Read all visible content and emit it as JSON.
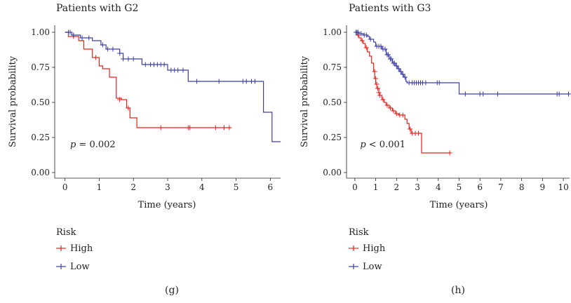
{
  "chart_data": [
    {
      "type": "line",
      "panel_label": "(g)",
      "title": "Patients with G2",
      "xlabel": "Time (years)",
      "ylabel": "Survival probability",
      "xlim": [
        -0.3,
        6.3
      ],
      "ylim": [
        -0.04,
        1.05
      ],
      "xticks": [
        0,
        1,
        2,
        3,
        4,
        5,
        6
      ],
      "xtick_labels": [
        "0",
        "1",
        "2",
        "3",
        "4",
        "5",
        "6"
      ],
      "yticks": [
        0,
        0.25,
        0.5,
        0.75,
        1
      ],
      "ytick_labels": [
        "0.00",
        "0.25",
        "0.50",
        "0.75",
        "1.00"
      ],
      "annotation": {
        "p_label": "p",
        "p_text": " = 0.002",
        "at": [
          0.15,
          0.2
        ]
      },
      "legend": {
        "title": "Risk",
        "placement": "bottom-left"
      },
      "series": [
        {
          "name": "High",
          "color": "#e0241f",
          "steps": [
            [
              0,
              1.0
            ],
            [
              0.1,
              0.97
            ],
            [
              0.4,
              0.94
            ],
            [
              0.55,
              0.88
            ],
            [
              0.8,
              0.82
            ],
            [
              1.0,
              0.76
            ],
            [
              1.1,
              0.74
            ],
            [
              1.3,
              0.68
            ],
            [
              1.5,
              0.53
            ],
            [
              1.65,
              0.52
            ],
            [
              1.8,
              0.46
            ],
            [
              1.9,
              0.39
            ],
            [
              2.1,
              0.32
            ],
            [
              4.85,
              0.32
            ]
          ],
          "censors": [
            [
              0.25,
              0.97
            ],
            [
              0.9,
              0.82
            ],
            [
              1.6,
              0.52
            ],
            [
              1.85,
              0.46
            ],
            [
              2.8,
              0.32
            ],
            [
              3.6,
              0.32
            ],
            [
              3.65,
              0.32
            ],
            [
              4.4,
              0.32
            ],
            [
              4.65,
              0.32
            ],
            [
              4.8,
              0.32
            ]
          ]
        },
        {
          "name": "Low",
          "color": "#3d3fa5",
          "steps": [
            [
              0,
              1.0
            ],
            [
              0.2,
              0.98
            ],
            [
              0.45,
              0.96
            ],
            [
              0.8,
              0.94
            ],
            [
              1.05,
              0.91
            ],
            [
              1.2,
              0.88
            ],
            [
              1.6,
              0.85
            ],
            [
              1.7,
              0.81
            ],
            [
              2.25,
              0.77
            ],
            [
              3.0,
              0.73
            ],
            [
              3.6,
              0.65
            ],
            [
              5.8,
              0.43
            ],
            [
              6.05,
              0.22
            ],
            [
              6.3,
              0.22
            ]
          ],
          "censors": [
            [
              0.1,
              1.0
            ],
            [
              0.15,
              1.0
            ],
            [
              0.25,
              0.98
            ],
            [
              0.5,
              0.96
            ],
            [
              0.7,
              0.96
            ],
            [
              1.1,
              0.91
            ],
            [
              1.25,
              0.88
            ],
            [
              1.4,
              0.88
            ],
            [
              1.6,
              0.85
            ],
            [
              1.7,
              0.81
            ],
            [
              1.85,
              0.81
            ],
            [
              2.0,
              0.81
            ],
            [
              2.35,
              0.77
            ],
            [
              2.5,
              0.77
            ],
            [
              2.6,
              0.77
            ],
            [
              2.7,
              0.77
            ],
            [
              2.8,
              0.77
            ],
            [
              2.9,
              0.77
            ],
            [
              3.1,
              0.73
            ],
            [
              3.2,
              0.73
            ],
            [
              3.3,
              0.73
            ],
            [
              3.45,
              0.73
            ],
            [
              3.85,
              0.65
            ],
            [
              4.5,
              0.65
            ],
            [
              5.2,
              0.65
            ],
            [
              5.3,
              0.65
            ],
            [
              5.45,
              0.65
            ],
            [
              5.55,
              0.65
            ]
          ]
        }
      ]
    },
    {
      "type": "line",
      "panel_label": "(h)",
      "title": "Patients with G3",
      "xlabel": "Time (years)",
      "ylabel": "Survival probability",
      "xlim": [
        -0.4,
        10.3
      ],
      "ylim": [
        -0.04,
        1.05
      ],
      "xticks": [
        0,
        1,
        2,
        3,
        4,
        5,
        6,
        7,
        8,
        9,
        10
      ],
      "xtick_labels": [
        "0",
        "1",
        "2",
        "3",
        "4",
        "5",
        "6",
        "7",
        "8",
        "9",
        "10"
      ],
      "yticks": [
        0,
        0.25,
        0.5,
        0.75,
        1
      ],
      "ytick_labels": [
        "0.00",
        "0.25",
        "0.50",
        "0.75",
        "1.00"
      ],
      "annotation": {
        "p_label": "p",
        "p_text": " < 0.001",
        "at": [
          0.25,
          0.2
        ]
      },
      "legend": {
        "title": "Risk",
        "placement": "bottom-left"
      },
      "series": [
        {
          "name": "High",
          "color": "#e0241f",
          "steps": [
            [
              0,
              1.0
            ],
            [
              0.1,
              0.98
            ],
            [
              0.2,
              0.96
            ],
            [
              0.3,
              0.94
            ],
            [
              0.4,
              0.92
            ],
            [
              0.5,
              0.89
            ],
            [
              0.6,
              0.86
            ],
            [
              0.7,
              0.83
            ],
            [
              0.8,
              0.78
            ],
            [
              0.9,
              0.72
            ],
            [
              0.95,
              0.67
            ],
            [
              1.0,
              0.63
            ],
            [
              1.05,
              0.6
            ],
            [
              1.15,
              0.57
            ],
            [
              1.2,
              0.55
            ],
            [
              1.3,
              0.52
            ],
            [
              1.4,
              0.5
            ],
            [
              1.5,
              0.48
            ],
            [
              1.65,
              0.46
            ],
            [
              1.8,
              0.44
            ],
            [
              1.95,
              0.42
            ],
            [
              2.1,
              0.41
            ],
            [
              2.4,
              0.38
            ],
            [
              2.5,
              0.35
            ],
            [
              2.6,
              0.31
            ],
            [
              2.7,
              0.28
            ],
            [
              3.2,
              0.14
            ],
            [
              4.6,
              0.14
            ]
          ],
          "censors": [
            [
              0.15,
              0.98
            ],
            [
              0.35,
              0.94
            ],
            [
              0.55,
              0.89
            ],
            [
              0.95,
              0.72
            ],
            [
              1.0,
              0.67
            ],
            [
              1.05,
              0.63
            ],
            [
              1.1,
              0.6
            ],
            [
              1.15,
              0.57
            ],
            [
              1.2,
              0.55
            ],
            [
              1.35,
              0.52
            ],
            [
              1.55,
              0.48
            ],
            [
              1.7,
              0.46
            ],
            [
              1.85,
              0.44
            ],
            [
              2.0,
              0.42
            ],
            [
              2.15,
              0.41
            ],
            [
              2.3,
              0.41
            ],
            [
              2.65,
              0.31
            ],
            [
              2.75,
              0.28
            ],
            [
              2.9,
              0.28
            ],
            [
              3.05,
              0.28
            ],
            [
              4.55,
              0.14
            ]
          ]
        },
        {
          "name": "Low",
          "color": "#3d3fa5",
          "steps": [
            [
              0,
              1.0
            ],
            [
              0.2,
              0.99
            ],
            [
              0.4,
              0.98
            ],
            [
              0.6,
              0.97
            ],
            [
              0.7,
              0.95
            ],
            [
              0.9,
              0.93
            ],
            [
              1.0,
              0.9
            ],
            [
              1.3,
              0.88
            ],
            [
              1.5,
              0.84
            ],
            [
              1.65,
              0.81
            ],
            [
              1.8,
              0.78
            ],
            [
              1.95,
              0.76
            ],
            [
              2.05,
              0.74
            ],
            [
              2.15,
              0.72
            ],
            [
              2.25,
              0.7
            ],
            [
              2.35,
              0.68
            ],
            [
              2.45,
              0.65
            ],
            [
              2.5,
              0.64
            ],
            [
              5.0,
              0.56
            ],
            [
              10.3,
              0.56
            ]
          ],
          "censors": [
            [
              0.05,
              1.0
            ],
            [
              0.1,
              1.0
            ],
            [
              0.15,
              1.0
            ],
            [
              0.3,
              0.99
            ],
            [
              0.45,
              0.98
            ],
            [
              0.55,
              0.98
            ],
            [
              0.75,
              0.95
            ],
            [
              1.05,
              0.9
            ],
            [
              1.15,
              0.9
            ],
            [
              1.25,
              0.9
            ],
            [
              1.35,
              0.88
            ],
            [
              1.45,
              0.88
            ],
            [
              1.55,
              0.84
            ],
            [
              1.6,
              0.84
            ],
            [
              1.7,
              0.81
            ],
            [
              1.75,
              0.81
            ],
            [
              1.85,
              0.78
            ],
            [
              1.9,
              0.78
            ],
            [
              2.0,
              0.76
            ],
            [
              2.1,
              0.74
            ],
            [
              2.2,
              0.72
            ],
            [
              2.3,
              0.7
            ],
            [
              2.4,
              0.68
            ],
            [
              2.6,
              0.64
            ],
            [
              2.75,
              0.64
            ],
            [
              2.85,
              0.64
            ],
            [
              2.95,
              0.64
            ],
            [
              3.05,
              0.64
            ],
            [
              3.15,
              0.64
            ],
            [
              3.25,
              0.64
            ],
            [
              3.4,
              0.64
            ],
            [
              3.95,
              0.64
            ],
            [
              4.05,
              0.64
            ],
            [
              5.3,
              0.56
            ],
            [
              6.0,
              0.56
            ],
            [
              6.15,
              0.56
            ],
            [
              6.85,
              0.56
            ],
            [
              9.7,
              0.56
            ],
            [
              9.8,
              0.56
            ],
            [
              10.25,
              0.56
            ]
          ]
        }
      ]
    }
  ]
}
